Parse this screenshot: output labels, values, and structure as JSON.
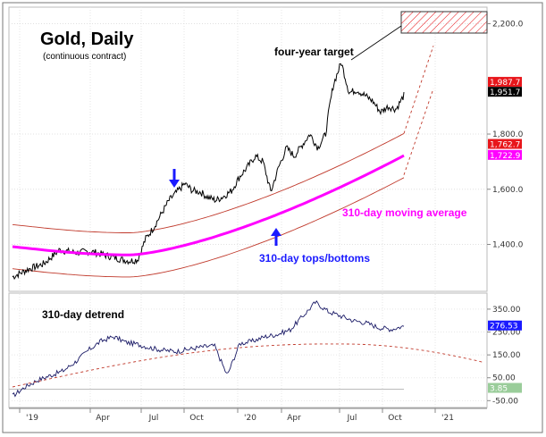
{
  "chart_data": [
    {
      "type": "line",
      "title": "Gold, Daily",
      "subtitle": "(continuous contract)",
      "x_tick_labels": [
        "'19",
        "Apr",
        "Jul",
        "Oct",
        "'20",
        "Apr",
        "Jul",
        "Oct",
        "'21"
      ],
      "y_tick_labels": [
        "2,200.0",
        "1,800.0",
        "1,600.0",
        "1,400.0"
      ],
      "y_ticks": [
        2200,
        1800,
        1600,
        1400
      ],
      "ylim": [
        1230,
        2260
      ],
      "price_tags": [
        {
          "value": 1987.7,
          "label": "1,987.7",
          "color": "#e8161b",
          "text_color": "#ffffff"
        },
        {
          "value": 1951.7,
          "label": "1,951.7",
          "color": "#000000",
          "text_color": "#ffffff"
        },
        {
          "value": 1762.7,
          "label": "1,762.7",
          "color": "#e8161b",
          "text_color": "#ffffff"
        },
        {
          "value": 1722.9,
          "label": "1,722.9",
          "color": "#ff00ff",
          "text_color": "#ffffff"
        }
      ],
      "series": [
        {
          "role": "price",
          "color": "#000000",
          "x": [
            0,
            0.04,
            0.08,
            0.12,
            0.16,
            0.2,
            0.24,
            0.28,
            0.3,
            0.32,
            0.34,
            0.36,
            0.38,
            0.4,
            0.42,
            0.44,
            0.46,
            0.48,
            0.5,
            0.52,
            0.54,
            0.56,
            0.57,
            0.58,
            0.6,
            0.62,
            0.64,
            0.66,
            0.68,
            0.7,
            0.72,
            0.74,
            0.76,
            0.78,
            0.8,
            0.81,
            0.82,
            0.84,
            0.86,
            0.88,
            0.9,
            0.92,
            0.94,
            0.96,
            0.98,
            1.0
          ],
          "y": [
            1282,
            1310,
            1330,
            1380,
            1370,
            1375,
            1360,
            1345,
            1340,
            1345,
            1420,
            1460,
            1510,
            1560,
            1590,
            1620,
            1595,
            1590,
            1570,
            1560,
            1575,
            1595,
            1620,
            1645,
            1680,
            1720,
            1700,
            1590,
            1680,
            1750,
            1720,
            1760,
            1800,
            1750,
            1800,
            1900,
            1980,
            2060,
            1950,
            1960,
            1940,
            1920,
            1880,
            1900,
            1890,
            1940
          ]
        },
        {
          "role": "upper-band",
          "color": "#c0392b",
          "x": [
            0,
            1
          ],
          "y_expr": "ma+80"
        },
        {
          "role": "lower-band",
          "color": "#c0392b",
          "x": [
            0,
            1
          ],
          "y_expr": "ma-80"
        },
        {
          "role": "310-day moving average",
          "color": "#ff00ff"
        }
      ],
      "annotations": [
        {
          "text": "four-year target",
          "color": "#000000"
        },
        {
          "text": "310-day moving average",
          "color": "#ff00ff"
        },
        {
          "text": "310-day tops/bottoms",
          "color": "#1a1aff"
        }
      ]
    },
    {
      "type": "line",
      "title": "310-day detrend",
      "y_tick_labels": [
        "350.00",
        "250.00",
        "150.00",
        "50.00",
        "-50.00"
      ],
      "y_ticks": [
        350,
        250,
        150,
        50,
        -50
      ],
      "ylim": [
        -80,
        420
      ],
      "price_tags": [
        {
          "value": 276.53,
          "label": "276.53",
          "color": "#1a1aff",
          "text_color": "#ffffff"
        },
        {
          "value": 3.85,
          "label": "3.85",
          "color": "#9acd9a",
          "text_color": "#ffffff"
        }
      ]
    }
  ]
}
